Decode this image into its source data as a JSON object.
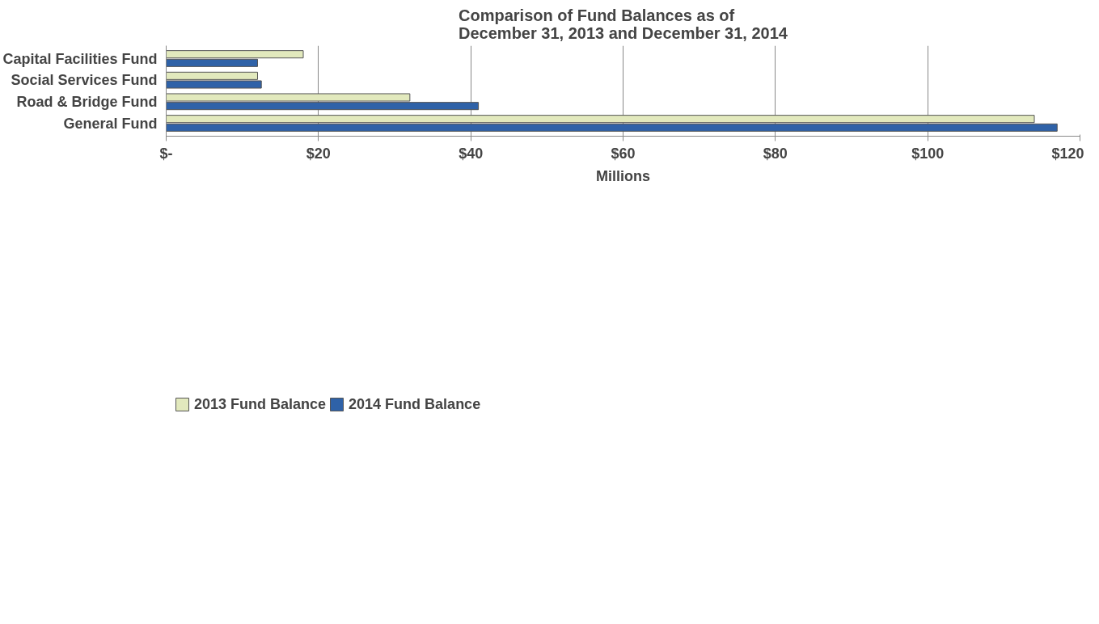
{
  "chart_data": {
    "type": "bar",
    "orientation": "horizontal",
    "title": "Comparison of Fund Balances as of\nDecember 31, 2013 and December 31, 2014",
    "xlabel": "Millions",
    "categories": [
      "Capital Facilities Fund",
      "Social Services Fund",
      "Road & Bridge Fund",
      "General Fund"
    ],
    "series": [
      {
        "name": "2013 Fund Balance",
        "color": "#e2e9bd",
        "values": [
          18,
          12,
          32,
          114
        ]
      },
      {
        "name": "2014 Fund Balance",
        "color": "#2f62a8",
        "values": [
          12,
          12.5,
          41,
          117
        ]
      }
    ],
    "xlim": [
      0,
      120
    ],
    "xticks": [
      {
        "value": 0,
        "label": "$-"
      },
      {
        "value": 20,
        "label": "$20"
      },
      {
        "value": 40,
        "label": "$40"
      },
      {
        "value": 60,
        "label": "$60"
      },
      {
        "value": 80,
        "label": "$80"
      },
      {
        "value": 100,
        "label": "$100"
      },
      {
        "value": 120,
        "label": "$120"
      }
    ],
    "grid": "x",
    "legend": "bottom left"
  }
}
